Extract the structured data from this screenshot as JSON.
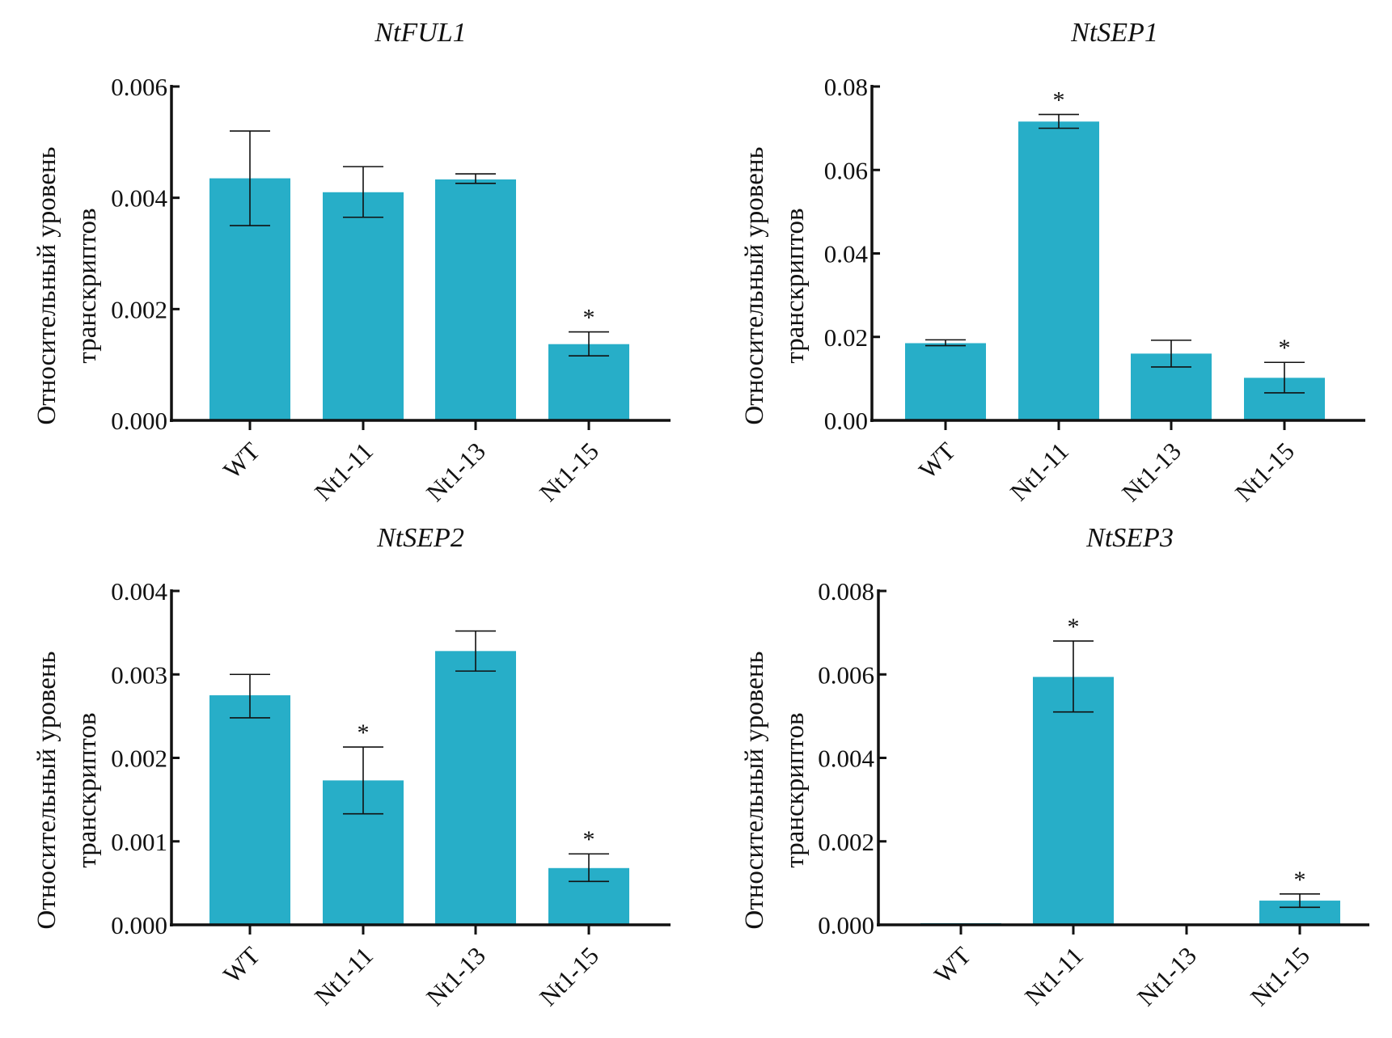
{
  "colors": {
    "bar": "#27aec8",
    "axis": "#111111"
  },
  "chart_data": [
    {
      "type": "bar",
      "title": "NtFUL1",
      "ylabel": [
        "Относительный уровень",
        "транскриптов"
      ],
      "categories": [
        "WT",
        "Nt1-11",
        "Nt1-13",
        "Nt1-15"
      ],
      "values": [
        0.00435,
        0.0041,
        0.00433,
        0.00137
      ],
      "error_low": [
        0.0035,
        0.00365,
        0.00426,
        0.00116
      ],
      "error_high": [
        0.0052,
        0.00456,
        0.00443,
        0.00159
      ],
      "significant": [
        false,
        false,
        false,
        true
      ],
      "marker": "*",
      "ylim": [
        0,
        0.006
      ],
      "yticks": [
        "0.000",
        "0.002",
        "0.004",
        "0.006"
      ],
      "ytick_values": [
        0,
        0.002,
        0.004,
        0.006
      ]
    },
    {
      "type": "bar",
      "title": "NtSEP1",
      "ylabel": [
        "Относительный уровень",
        "транскриптов"
      ],
      "categories": [
        "WT",
        "Nt1-11",
        "Nt1-13",
        "Nt1-15"
      ],
      "values": [
        0.0185,
        0.0716,
        0.016,
        0.0102
      ],
      "error_low": [
        0.0179,
        0.07,
        0.0128,
        0.0066
      ],
      "error_high": [
        0.0193,
        0.0733,
        0.0192,
        0.0139
      ],
      "significant": [
        false,
        true,
        false,
        true
      ],
      "marker": "*",
      "ylim": [
        0,
        0.08
      ],
      "yticks": [
        "0.00",
        "0.02",
        "0.04",
        "0.06",
        "0.08"
      ],
      "ytick_values": [
        0,
        0.02,
        0.04,
        0.06,
        0.08
      ]
    },
    {
      "type": "bar",
      "title": "NtSEP2",
      "ylabel": [
        "Относительный уровень",
        "транскриптов"
      ],
      "categories": [
        "WT",
        "Nt1-11",
        "Nt1-13",
        "Nt1-15"
      ],
      "values": [
        0.00275,
        0.00173,
        0.00328,
        0.00068
      ],
      "error_low": [
        0.00248,
        0.00133,
        0.00304,
        0.00052
      ],
      "error_high": [
        0.003,
        0.00213,
        0.00352,
        0.00085
      ],
      "significant": [
        false,
        true,
        false,
        true
      ],
      "marker": "*",
      "ylim": [
        0,
        0.004
      ],
      "yticks": [
        "0.000",
        "0.001",
        "0.002",
        "0.003",
        "0.004"
      ],
      "ytick_values": [
        0,
        0.001,
        0.002,
        0.003,
        0.004
      ]
    },
    {
      "type": "bar",
      "title": "NtSEP3",
      "ylabel": [
        "Относительный уровень",
        "транскриптов"
      ],
      "categories": [
        "WT",
        "Nt1-11",
        "Nt1-13",
        "Nt1-15"
      ],
      "values": [
        4e-05,
        0.00594,
        0,
        0.00058
      ],
      "error_low": [
        null,
        0.0051,
        null,
        0.00042
      ],
      "error_high": [
        null,
        0.0068,
        null,
        0.00074
      ],
      "significant": [
        false,
        true,
        false,
        true
      ],
      "marker": "*",
      "ylim": [
        0,
        0.008
      ],
      "yticks": [
        "0.000",
        "0.002",
        "0.004",
        "0.006",
        "0.008"
      ],
      "ytick_values": [
        0,
        0.002,
        0.004,
        0.006,
        0.008
      ]
    }
  ]
}
